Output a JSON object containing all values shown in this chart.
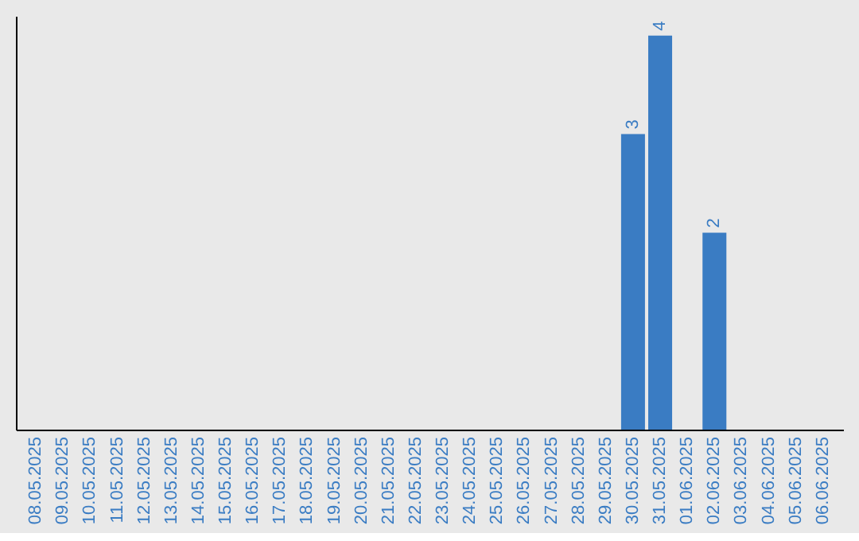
{
  "chart_data": {
    "type": "bar",
    "categories": [
      "08.05.2025",
      "09.05.2025",
      "10.05.2025",
      "11.05.2025",
      "12.05.2025",
      "13.05.2025",
      "14.05.2025",
      "15.05.2025",
      "16.05.2025",
      "17.05.2025",
      "18.05.2025",
      "19.05.2025",
      "20.05.2025",
      "21.05.2025",
      "22.05.2025",
      "23.05.2025",
      "24.05.2025",
      "25.05.2025",
      "26.05.2025",
      "27.05.2025",
      "28.05.2025",
      "29.05.2025",
      "30.05.2025",
      "31.05.2025",
      "01.06.2025",
      "02.06.2025",
      "03.06.2025",
      "04.06.2025",
      "05.06.2025",
      "06.06.2025"
    ],
    "values": [
      null,
      null,
      null,
      null,
      null,
      null,
      null,
      null,
      null,
      null,
      null,
      null,
      null,
      null,
      null,
      null,
      null,
      null,
      null,
      null,
      null,
      null,
      3,
      4,
      null,
      2,
      null,
      null,
      null,
      null
    ],
    "data_labels": true,
    "color": "#3a7cc3",
    "ylim": [
      0,
      4.2
    ],
    "tick_labels": "x",
    "grid": false
  }
}
